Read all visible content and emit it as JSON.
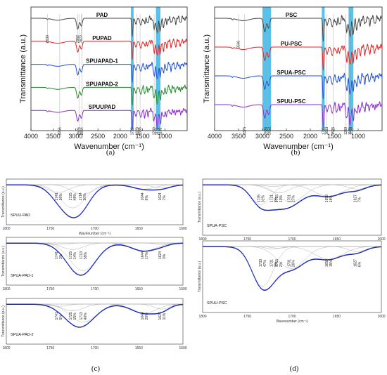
{
  "panel_labels": [
    "(a)",
    "(b)",
    "(c)",
    "(d)"
  ],
  "chart_data": [
    {
      "id": "a",
      "type": "line",
      "xlabel": "Wavenumber (cm⁻¹)",
      "ylabel": "Transmittance (a.u.)",
      "xlim": [
        4000,
        500
      ],
      "xticks": [
        4000,
        3500,
        3000,
        2500,
        2000,
        1500,
        1000
      ],
      "highlight_bands": [
        [
          1760,
          1700
        ],
        [
          1200,
          1100
        ]
      ],
      "series": [
        {
          "name": "PAD",
          "color": "#444444",
          "offset": 0
        },
        {
          "name": "PUPAD",
          "color": "#e82020",
          "offset": 1
        },
        {
          "name": "SPUAPAD-1",
          "color": "#1f4fd6",
          "offset": 2
        },
        {
          "name": "SPUAPAD-2",
          "color": "#1f8a2a",
          "offset": 3
        },
        {
          "name": "SPUUPAD",
          "color": "#8a2bd6",
          "offset": 4
        }
      ],
      "peak_labels": [
        {
          "wn": 3630,
          "text": "3630",
          "row": 0
        },
        {
          "wn": 2952,
          "text": "2952",
          "row": 0
        },
        {
          "wn": 2872,
          "text": "2872",
          "row": 0
        },
        {
          "wn": 3355,
          "text": "3355",
          "row": 4
        },
        {
          "wn": 2925,
          "text": "2925",
          "row": 4
        },
        {
          "wn": 2854,
          "text": "2854",
          "row": 4
        },
        {
          "wn": 1728,
          "text": "1728",
          "row": 4
        },
        {
          "wn": 1623,
          "text": "1623",
          "row": 4
        },
        {
          "wn": 1555,
          "text": "1555",
          "row": 4
        },
        {
          "wn": 1240,
          "text": "1240",
          "row": 4
        },
        {
          "wn": 1170,
          "text": "1170",
          "row": 4
        },
        {
          "wn": 1102,
          "text": "1102",
          "row": 4
        }
      ]
    },
    {
      "id": "b",
      "type": "line",
      "xlabel": "Wavenumber (cm⁻¹)",
      "ylabel": "Transmittance (a.u.)",
      "xlim": [
        4000,
        500
      ],
      "xticks": [
        4000,
        3500,
        3000,
        2500,
        2000,
        1500,
        1000
      ],
      "highlight_bands": [
        [
          3000,
          2820
        ],
        [
          1760,
          1700
        ],
        [
          1200,
          1100
        ]
      ],
      "series": [
        {
          "name": "PSC",
          "color": "#444444",
          "offset": 0
        },
        {
          "name": "PU-PSC",
          "color": "#e82020",
          "offset": 1
        },
        {
          "name": "SPUA-PSC",
          "color": "#1f4fd6",
          "offset": 2
        },
        {
          "name": "SPUU-PSC",
          "color": "#8a2bd6",
          "offset": 3
        }
      ],
      "peak_labels": [
        {
          "wn": 3500,
          "text": "3500",
          "row": 0
        },
        {
          "wn": 3375,
          "text": "3375",
          "row": 3
        },
        {
          "wn": 2926,
          "text": "2926",
          "row": 3
        },
        {
          "wn": 2852,
          "text": "2852",
          "row": 3
        },
        {
          "wn": 1721,
          "text": "1721",
          "row": 3
        },
        {
          "wn": 1653,
          "text": "1653",
          "row": 3
        },
        {
          "wn": 1525,
          "text": "1525",
          "row": 3
        },
        {
          "wn": 1260,
          "text": "1260",
          "row": 3
        },
        {
          "wn": 1170,
          "text": "1170",
          "row": 3
        },
        {
          "wn": 1150,
          "text": "1150",
          "row": 3
        }
      ]
    },
    {
      "id": "c",
      "type": "line",
      "xlabel": "Wavenumber (cm⁻¹)",
      "ylabel": "Transmittance (a.u.)",
      "xlim": [
        1800,
        1600
      ],
      "xticks": [
        1800,
        1750,
        1700,
        1650,
        1600
      ],
      "subplots": [
        {
          "name": "SPUU-PAD",
          "min_wn": 1722,
          "depth": 0.88,
          "peaks": [
            {
              "wn": 1741,
              "pct": "16%",
              "c": 1741,
              "w": 12,
              "a": 0.16
            },
            {
              "wn": 1725,
              "pct": "48%",
              "c": 1725,
              "w": 14,
              "a": 0.48
            },
            {
              "wn": 1714,
              "pct": "20%",
              "c": 1714,
              "w": 12,
              "a": 0.2
            },
            {
              "wn": 1644,
              "pct": "9%",
              "c": 1644,
              "w": 12,
              "a": 0.09
            },
            {
              "wn": 1624,
              "pct": "7%",
              "c": 1624,
              "w": 10,
              "a": 0.07
            }
          ]
        },
        {
          "name": "SPUA-PAD-1",
          "min_wn": 1722,
          "depth": 0.8,
          "peaks": [
            {
              "wn": 1741,
              "pct": "3%",
              "c": 1741,
              "w": 10,
              "a": 0.03
            },
            {
              "wn": 1725,
              "pct": "14%",
              "c": 1725,
              "w": 12,
              "a": 0.14
            },
            {
              "wn": 1713,
              "pct": "59%",
              "c": 1713,
              "w": 15,
              "a": 0.59
            },
            {
              "wn": 1644,
              "pct": "17%",
              "c": 1644,
              "w": 14,
              "a": 0.17
            },
            {
              "wn": 1624,
              "pct": "3%",
              "c": 1624,
              "w": 8,
              "a": 0.03
            }
          ]
        },
        {
          "name": "SPUA-PAD-2",
          "min_wn": 1723,
          "depth": 0.82,
          "peaks": [
            {
              "wn": 1741,
              "pct": "5%",
              "c": 1741,
              "w": 10,
              "a": 0.05
            },
            {
              "wn": 1725,
              "pct": "15%",
              "c": 1725,
              "w": 12,
              "a": 0.15
            },
            {
              "wn": 1713,
              "pct": "40%",
              "c": 1713,
              "w": 15,
              "a": 0.4
            },
            {
              "wn": 1644,
              "pct": "20%",
              "c": 1644,
              "w": 14,
              "a": 0.2
            },
            {
              "wn": 1624,
              "pct": "11%",
              "c": 1624,
              "w": 9,
              "a": 0.11
            }
          ]
        }
      ]
    },
    {
      "id": "d",
      "type": "line",
      "xlabel": "Wavenumber (cm⁻¹)",
      "ylabel": "Transmittance (a.u.)",
      "xlim": [
        1800,
        1600
      ],
      "xticks": [
        1800,
        1750,
        1700,
        1650,
        1600
      ],
      "subplots": [
        {
          "name": "SPUA-PSC",
          "min_wn": 1728,
          "depth": 0.88,
          "peaks": [
            {
              "wn": 1735,
              "pct": "31%",
              "c": 1735,
              "w": 11,
              "a": 0.31
            },
            {
              "wn": 1721,
              "pct": "3%",
              "c": 1721,
              "w": 8,
              "a": 0.03
            },
            {
              "wn": 1715,
              "pct": "13%",
              "c": 1715,
              "w": 12,
              "a": 0.13
            },
            {
              "wn": 1701,
              "pct": "27%",
              "c": 1701,
              "w": 15,
              "a": 0.27
            },
            {
              "wn": 1659,
              "pct": "18%",
              "c": 1659,
              "w": 16,
              "a": 0.18
            },
            {
              "wn": 1627,
              "pct": "7%",
              "c": 1627,
              "w": 10,
              "a": 0.07
            }
          ]
        },
        {
          "name": "SPUU-PSC",
          "min_wn": 1730,
          "depth": 0.86,
          "peaks": [
            {
              "wn": 1733,
              "pct": "47%",
              "c": 1733,
              "w": 12,
              "a": 0.47
            },
            {
              "wn": 1721,
              "pct": "3%",
              "c": 1721,
              "w": 8,
              "a": 0.03
            },
            {
              "wn": 1715,
              "pct": "2%",
              "c": 1715,
              "w": 8,
              "a": 0.02
            },
            {
              "wn": 1701,
              "pct": "26%",
              "c": 1701,
              "w": 15,
              "a": 0.26
            },
            {
              "wn": 1659,
              "pct": "15%",
              "c": 1659,
              "w": 16,
              "a": 0.15
            },
            {
              "wn": 1627,
              "pct": "6%",
              "c": 1627,
              "w": 10,
              "a": 0.06
            }
          ]
        }
      ]
    }
  ]
}
